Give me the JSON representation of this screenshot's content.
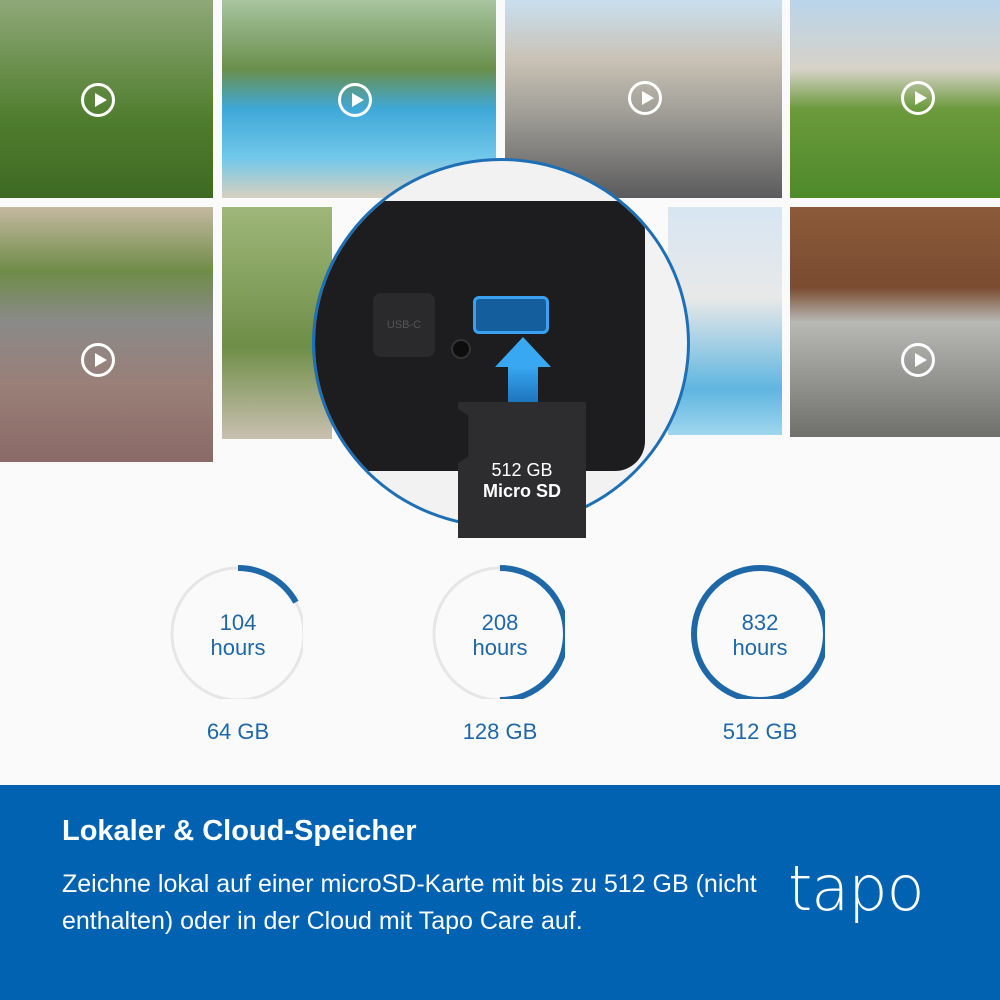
{
  "camera_feeds": [
    {
      "scene": "dog on lawn"
    },
    {
      "scene": "swimming pool"
    },
    {
      "scene": "street"
    },
    {
      "scene": "house with lawn"
    },
    {
      "scene": "person with package"
    },
    {
      "scene": "tree in yard"
    },
    {
      "scene": "modern house with pool"
    },
    {
      "scene": "car in driveway"
    }
  ],
  "sd_card": {
    "capacity": "512 GB",
    "label": "Micro SD"
  },
  "usb_label": "USB-C",
  "storage_options": [
    {
      "hours": "104",
      "unit": "hours",
      "capacity": "64 GB",
      "fill": 0.17
    },
    {
      "hours": "208",
      "unit": "hours",
      "capacity": "128 GB",
      "fill": 0.5
    },
    {
      "hours": "832",
      "unit": "hours",
      "capacity": "512 GB",
      "fill": 1.0
    }
  ],
  "colors": {
    "accent": "#1f68a8",
    "banner": "#0062b1",
    "track": "#e6e6e6"
  },
  "banner": {
    "title": "Lokaler & Cloud-Speicher",
    "description": "Zeichne lokal auf einer microSD-Karte mit bis zu 512 GB (nicht enthalten) oder in der Cloud mit Tapo Care auf.",
    "logo": "tapo"
  }
}
